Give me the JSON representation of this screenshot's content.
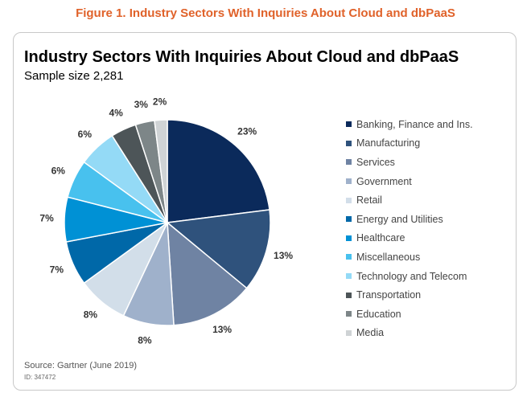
{
  "figure_caption": "Figure 1. Industry Sectors With Inquiries About Cloud and dbPaaS",
  "source": "Source: Gartner (June 2019)",
  "figure_id": "ID: 347472",
  "chart_data": {
    "type": "pie",
    "title": "Industry Sectors With Inquiries About Cloud and dbPaaS",
    "subtitle": "Sample size 2,281",
    "legend_position": "right",
    "slices": [
      {
        "label": "Banking, Finance and Ins.",
        "value": 23,
        "display": "23%",
        "color": "#0b2a5b"
      },
      {
        "label": "Manufacturing",
        "value": 13,
        "display": "13%",
        "color": "#2f527c"
      },
      {
        "label": "Services",
        "value": 13,
        "display": "13%",
        "color": "#6f83a3"
      },
      {
        "label": "Government",
        "value": 8,
        "display": "8%",
        "color": "#9fb1cb"
      },
      {
        "label": "Retail",
        "value": 8,
        "display": "8%",
        "color": "#d2dee9"
      },
      {
        "label": "Energy and Utilities",
        "value": 7,
        "display": "7%",
        "color": "#0068a8"
      },
      {
        "label": "Healthcare",
        "value": 7,
        "display": "7%",
        "color": "#0091d5"
      },
      {
        "label": "Miscellaneous",
        "value": 6,
        "display": "6%",
        "color": "#48c1ee"
      },
      {
        "label": "Technology and Telecom",
        "value": 6,
        "display": "6%",
        "color": "#94daf6"
      },
      {
        "label": "Transportation",
        "value": 4,
        "display": "4%",
        "color": "#4d5558"
      },
      {
        "label": "Education",
        "value": 3,
        "display": "3%",
        "color": "#7d8688"
      },
      {
        "label": "Media",
        "value": 2,
        "display": "2%",
        "color": "#cfd3d5"
      }
    ]
  }
}
